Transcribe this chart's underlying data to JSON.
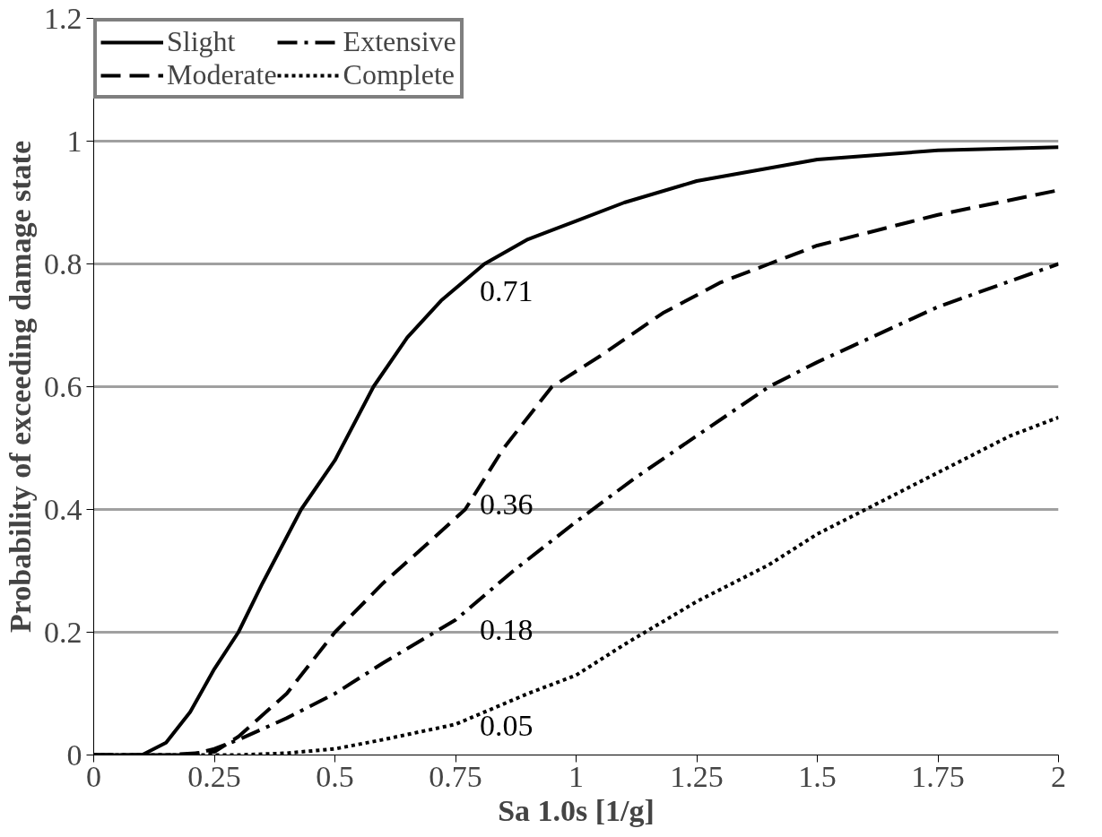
{
  "chart_data": {
    "type": "line",
    "xlabel": "Sa 1.0s [1/g]",
    "ylabel": "Probability of exceeding damage state",
    "xlim": [
      0,
      2
    ],
    "ylim": [
      0,
      1.2
    ],
    "xticks": [
      0,
      0.25,
      0.5,
      0.75,
      1,
      1.25,
      1.5,
      1.75,
      2
    ],
    "yticks": [
      0,
      0.2,
      0.4,
      0.6,
      0.8,
      1,
      1.2
    ],
    "grid": "y",
    "legend": "top left",
    "marker": "none",
    "series": [
      {
        "name": "Slight",
        "color": "#000000",
        "line_style": "solid",
        "x": [
          0,
          0.1,
          0.15,
          0.2,
          0.25,
          0.3,
          0.35,
          0.43,
          0.5,
          0.58,
          0.65,
          0.72,
          0.81,
          0.9,
          1.0,
          1.1,
          1.25,
          1.5,
          1.75,
          2
        ],
        "values": [
          0,
          0,
          0.02,
          0.07,
          0.14,
          0.2,
          0.28,
          0.4,
          0.48,
          0.6,
          0.68,
          0.74,
          0.8,
          0.84,
          0.87,
          0.9,
          0.935,
          0.97,
          0.985,
          0.99
        ]
      },
      {
        "name": "Moderate",
        "color": "#000000",
        "line_style": "dashed",
        "x": [
          0,
          0.1,
          0.15,
          0.25,
          0.3,
          0.4,
          0.5,
          0.6,
          0.7,
          0.77,
          0.85,
          0.95,
          1.05,
          1.18,
          1.3,
          1.4,
          1.5,
          1.75,
          2
        ],
        "values": [
          0,
          0,
          0,
          0.005,
          0.03,
          0.1,
          0.2,
          0.28,
          0.35,
          0.4,
          0.5,
          0.6,
          0.65,
          0.72,
          0.77,
          0.8,
          0.83,
          0.88,
          0.92
        ]
      },
      {
        "name": "Extensive",
        "color": "#000000",
        "line_style": "dashdot",
        "x": [
          0,
          0.2,
          0.25,
          0.3,
          0.4,
          0.5,
          0.6,
          0.75,
          0.87,
          1.0,
          1.12,
          1.25,
          1.4,
          1.5,
          1.75,
          2
        ],
        "values": [
          0,
          0.0,
          0.01,
          0.025,
          0.06,
          0.1,
          0.15,
          0.22,
          0.3,
          0.38,
          0.45,
          0.52,
          0.6,
          0.64,
          0.73,
          0.8
        ]
      },
      {
        "name": "Complete",
        "color": "#000000",
        "line_style": "dotted",
        "x": [
          0,
          0.3,
          0.4,
          0.5,
          0.6,
          0.75,
          0.9,
          1.0,
          1.1,
          1.25,
          1.4,
          1.5,
          1.6,
          1.75,
          1.9,
          2
        ],
        "values": [
          0,
          0.0,
          0.003,
          0.01,
          0.025,
          0.05,
          0.1,
          0.13,
          0.18,
          0.25,
          0.31,
          0.36,
          0.4,
          0.46,
          0.52,
          0.55
        ]
      }
    ],
    "annotations": [
      "0.71",
      "0.36",
      "0.18",
      "0.05"
    ]
  }
}
